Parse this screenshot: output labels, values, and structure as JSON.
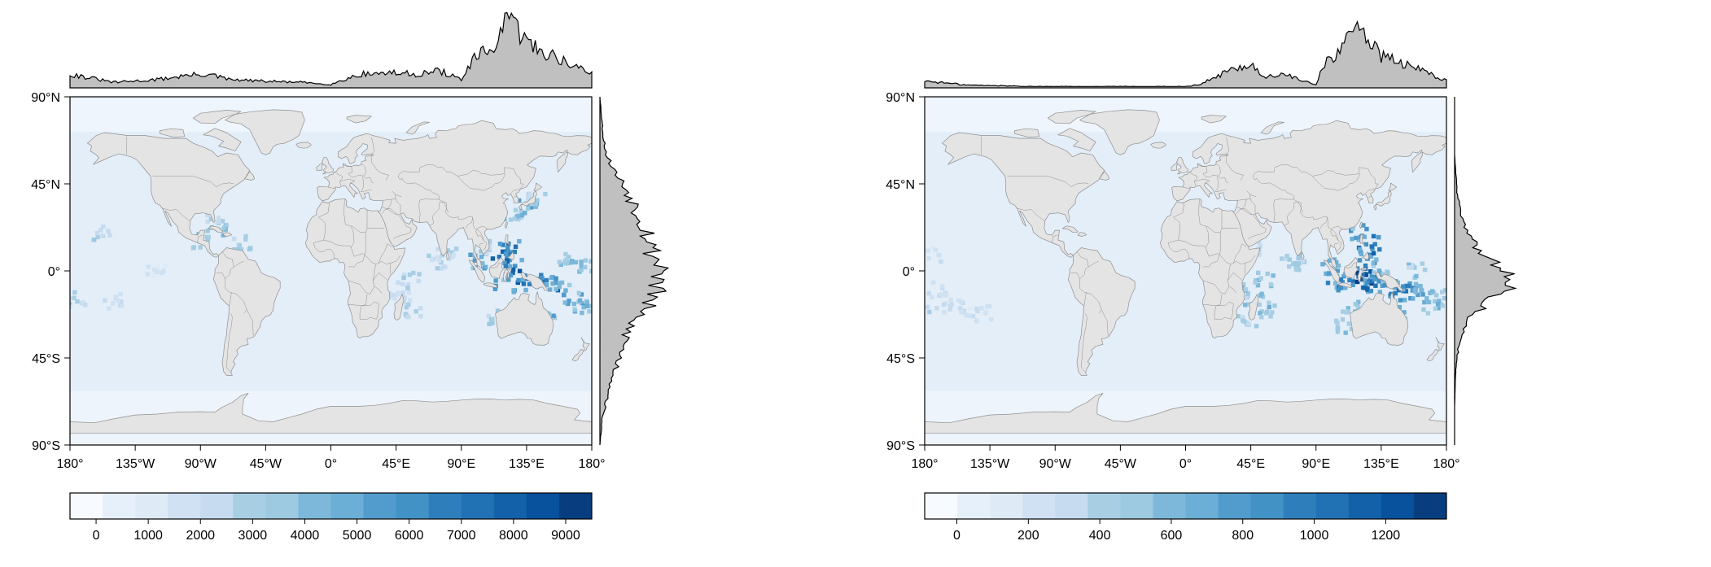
{
  "latitude_ticks": [
    "90°N",
    "45°N",
    "0°",
    "45°S",
    "90°S"
  ],
  "longitude_ticks": [
    "180°",
    "135°W",
    "90°W",
    "45°W",
    "0°",
    "45°E",
    "90°E",
    "135°E",
    "180°"
  ],
  "colors": {
    "land": "#e4e4e4",
    "land_border": "#8f8f8f",
    "ocean": "#e3eef8",
    "marginal_fill": "#c0c0c0",
    "colormap": [
      "#f7fbff",
      "#e6f0fa",
      "#deebf7",
      "#cfe1f2",
      "#c6dbef",
      "#a8cee4",
      "#9ecae1",
      "#7db8da",
      "#6baed6",
      "#519ccc",
      "#4292c6",
      "#2f7ebc",
      "#2171b5",
      "#1361a9",
      "#08519c",
      "#083e80"
    ]
  },
  "maps": [
    {
      "id": "left",
      "colorbar": {
        "labels": [
          "0",
          "1000",
          "2000",
          "3000",
          "4000",
          "5000",
          "6000",
          "7000",
          "8000",
          "9000"
        ],
        "min": -500,
        "max": 9500
      },
      "hotspots": [
        {
          "lon": 100,
          "lat": 5,
          "value": 6500
        },
        {
          "lon": 108,
          "lat": 12,
          "value": 4000
        },
        {
          "lon": 118,
          "lat": 8,
          "value": 8500
        },
        {
          "lon": 123,
          "lat": 12,
          "value": 7500
        },
        {
          "lon": 125,
          "lat": 2,
          "value": 8800
        },
        {
          "lon": 130,
          "lat": -3,
          "value": 9000
        },
        {
          "lon": 120,
          "lat": -8,
          "value": 7000
        },
        {
          "lon": 140,
          "lat": -6,
          "value": 8000
        },
        {
          "lon": 150,
          "lat": -6,
          "value": 7800
        },
        {
          "lon": 158,
          "lat": -9,
          "value": 6500
        },
        {
          "lon": 168,
          "lat": -15,
          "value": 6000
        },
        {
          "lon": 175,
          "lat": -18,
          "value": 5000
        },
        {
          "lon": 173,
          "lat": 2,
          "value": 5500
        },
        {
          "lon": 163,
          "lat": 7,
          "value": 4500
        },
        {
          "lon": 125,
          "lat": 30,
          "value": 5000
        },
        {
          "lon": 135,
          "lat": 33,
          "value": 5500
        },
        {
          "lon": 141,
          "lat": 38,
          "value": 3500
        },
        {
          "lon": 80,
          "lat": 8,
          "value": 3500
        },
        {
          "lon": 73,
          "lat": 5,
          "value": 3000
        },
        {
          "lon": 55,
          "lat": -5,
          "value": 4000
        },
        {
          "lon": 48,
          "lat": -15,
          "value": 3000
        },
        {
          "lon": 57,
          "lat": -20,
          "value": 3500
        },
        {
          "lon": 40,
          "lat": -10,
          "value": 2500
        },
        {
          "lon": 38,
          "lat": 18,
          "value": 3000
        },
        {
          "lon": 114,
          "lat": -24,
          "value": 4000
        },
        {
          "lon": 150,
          "lat": -25,
          "value": 5500
        },
        {
          "lon": -78,
          "lat": 20,
          "value": 4500
        },
        {
          "lon": -88,
          "lat": 15,
          "value": 4000
        },
        {
          "lon": -62,
          "lat": 15,
          "value": 3500
        },
        {
          "lon": -80,
          "lat": 28,
          "value": 3000
        },
        {
          "lon": -157,
          "lat": 20,
          "value": 3500
        },
        {
          "lon": -175,
          "lat": -15,
          "value": 3000
        },
        {
          "lon": -150,
          "lat": -16,
          "value": 2500
        },
        {
          "lon": -120,
          "lat": 0,
          "value": 2000
        }
      ],
      "top_density": [
        {
          "lon": -180,
          "v": 0.2
        },
        {
          "lon": -150,
          "v": 0.08
        },
        {
          "lon": -120,
          "v": 0.12
        },
        {
          "lon": -100,
          "v": 0.18
        },
        {
          "lon": -85,
          "v": 0.2
        },
        {
          "lon": -70,
          "v": 0.12
        },
        {
          "lon": -50,
          "v": 0.1
        },
        {
          "lon": -20,
          "v": 0.08
        },
        {
          "lon": 0,
          "v": 0.05
        },
        {
          "lon": 20,
          "v": 0.2
        },
        {
          "lon": 40,
          "v": 0.22
        },
        {
          "lon": 60,
          "v": 0.2
        },
        {
          "lon": 75,
          "v": 0.25
        },
        {
          "lon": 90,
          "v": 0.12
        },
        {
          "lon": 100,
          "v": 0.45
        },
        {
          "lon": 110,
          "v": 0.55
        },
        {
          "lon": 115,
          "v": 0.7
        },
        {
          "lon": 120,
          "v": 0.9
        },
        {
          "lon": 125,
          "v": 1.0
        },
        {
          "lon": 130,
          "v": 0.8
        },
        {
          "lon": 140,
          "v": 0.6
        },
        {
          "lon": 150,
          "v": 0.5
        },
        {
          "lon": 160,
          "v": 0.4
        },
        {
          "lon": 170,
          "v": 0.3
        },
        {
          "lon": 180,
          "v": 0.2
        }
      ],
      "right_density": [
        {
          "lat": 90,
          "v": 0.0
        },
        {
          "lat": 70,
          "v": 0.05
        },
        {
          "lat": 60,
          "v": 0.1
        },
        {
          "lat": 50,
          "v": 0.25
        },
        {
          "lat": 40,
          "v": 0.45
        },
        {
          "lat": 30,
          "v": 0.6
        },
        {
          "lat": 20,
          "v": 0.75
        },
        {
          "lat": 10,
          "v": 0.8
        },
        {
          "lat": 5,
          "v": 0.9
        },
        {
          "lat": 0,
          "v": 1.0
        },
        {
          "lat": -5,
          "v": 0.9
        },
        {
          "lat": -10,
          "v": 0.85
        },
        {
          "lat": -15,
          "v": 0.8
        },
        {
          "lat": -20,
          "v": 0.65
        },
        {
          "lat": -25,
          "v": 0.5
        },
        {
          "lat": -35,
          "v": 0.4
        },
        {
          "lat": -45,
          "v": 0.3
        },
        {
          "lat": -55,
          "v": 0.2
        },
        {
          "lat": -65,
          "v": 0.12
        },
        {
          "lat": -75,
          "v": 0.04
        },
        {
          "lat": -90,
          "v": 0.0
        }
      ]
    },
    {
      "id": "right",
      "colorbar": {
        "labels": [
          "0",
          "200",
          "400",
          "600",
          "800",
          "1000",
          "1200"
        ],
        "min": -90,
        "max": 1370
      },
      "hotspots": [
        {
          "lon": 100,
          "lat": 2,
          "value": 800
        },
        {
          "lon": 105,
          "lat": -5,
          "value": 1000
        },
        {
          "lon": 112,
          "lat": -6,
          "value": 1200
        },
        {
          "lon": 118,
          "lat": 0,
          "value": 1300
        },
        {
          "lon": 122,
          "lat": -4,
          "value": 1350
        },
        {
          "lon": 124,
          "lat": 8,
          "value": 1250
        },
        {
          "lon": 127,
          "lat": 15,
          "value": 1100
        },
        {
          "lon": 120,
          "lat": 20,
          "value": 900
        },
        {
          "lon": 128,
          "lat": -8,
          "value": 1200
        },
        {
          "lon": 135,
          "lat": -6,
          "value": 1100
        },
        {
          "lon": 140,
          "lat": -10,
          "value": 1000
        },
        {
          "lon": 148,
          "lat": -8,
          "value": 1150
        },
        {
          "lon": 155,
          "lat": -12,
          "value": 950
        },
        {
          "lon": 163,
          "lat": -10,
          "value": 850
        },
        {
          "lon": 170,
          "lat": -18,
          "value": 700
        },
        {
          "lon": 175,
          "lat": -14,
          "value": 650
        },
        {
          "lon": 160,
          "lat": 0,
          "value": 600
        },
        {
          "lon": 145,
          "lat": -22,
          "value": 800
        },
        {
          "lon": 115,
          "lat": -20,
          "value": 700
        },
        {
          "lon": 110,
          "lat": -28,
          "value": 600
        },
        {
          "lon": 135,
          "lat": 2,
          "value": 700
        },
        {
          "lon": 80,
          "lat": 6,
          "value": 550
        },
        {
          "lon": 73,
          "lat": 4,
          "value": 500
        },
        {
          "lon": 55,
          "lat": -5,
          "value": 650
        },
        {
          "lon": 48,
          "lat": -15,
          "value": 600
        },
        {
          "lon": 57,
          "lat": -20,
          "value": 700
        },
        {
          "lon": 40,
          "lat": -10,
          "value": 600
        },
        {
          "lon": 42,
          "lat": -25,
          "value": 550
        },
        {
          "lon": 38,
          "lat": 20,
          "value": 650
        },
        {
          "lon": 45,
          "lat": 12,
          "value": 500
        },
        {
          "lon": -178,
          "lat": -18,
          "value": 450
        },
        {
          "lon": -170,
          "lat": -10,
          "value": 400
        },
        {
          "lon": -160,
          "lat": -18,
          "value": 350
        },
        {
          "lon": -150,
          "lat": -20,
          "value": 300
        },
        {
          "lon": -140,
          "lat": -22,
          "value": 250
        },
        {
          "lon": -175,
          "lat": 8,
          "value": 300
        }
      ],
      "top_density": [
        {
          "lon": -180,
          "v": 0.1
        },
        {
          "lon": -150,
          "v": 0.04
        },
        {
          "lon": -100,
          "v": 0.02
        },
        {
          "lon": -60,
          "v": 0.02
        },
        {
          "lon": -20,
          "v": 0.02
        },
        {
          "lon": 0,
          "v": 0.02
        },
        {
          "lon": 10,
          "v": 0.05
        },
        {
          "lon": 30,
          "v": 0.25
        },
        {
          "lon": 45,
          "v": 0.35
        },
        {
          "lon": 55,
          "v": 0.15
        },
        {
          "lon": 70,
          "v": 0.2
        },
        {
          "lon": 80,
          "v": 0.1
        },
        {
          "lon": 90,
          "v": 0.05
        },
        {
          "lon": 95,
          "v": 0.35
        },
        {
          "lon": 105,
          "v": 0.5
        },
        {
          "lon": 115,
          "v": 0.8
        },
        {
          "lon": 120,
          "v": 1.0
        },
        {
          "lon": 125,
          "v": 0.75
        },
        {
          "lon": 135,
          "v": 0.45
        },
        {
          "lon": 145,
          "v": 0.4
        },
        {
          "lon": 155,
          "v": 0.3
        },
        {
          "lon": 165,
          "v": 0.25
        },
        {
          "lon": 175,
          "v": 0.15
        },
        {
          "lon": 180,
          "v": 0.1
        }
      ],
      "right_density": [
        {
          "lat": 90,
          "v": 0.0
        },
        {
          "lat": 60,
          "v": 0.0
        },
        {
          "lat": 40,
          "v": 0.04
        },
        {
          "lat": 30,
          "v": 0.1
        },
        {
          "lat": 20,
          "v": 0.2
        },
        {
          "lat": 12,
          "v": 0.35
        },
        {
          "lat": 5,
          "v": 0.6
        },
        {
          "lat": 0,
          "v": 0.8
        },
        {
          "lat": -5,
          "v": 1.0
        },
        {
          "lat": -10,
          "v": 0.75
        },
        {
          "lat": -15,
          "v": 0.55
        },
        {
          "lat": -20,
          "v": 0.4
        },
        {
          "lat": -25,
          "v": 0.2
        },
        {
          "lat": -35,
          "v": 0.08
        },
        {
          "lat": -50,
          "v": 0.02
        },
        {
          "lat": -70,
          "v": 0.0
        },
        {
          "lat": -90,
          "v": 0.0
        }
      ]
    }
  ]
}
